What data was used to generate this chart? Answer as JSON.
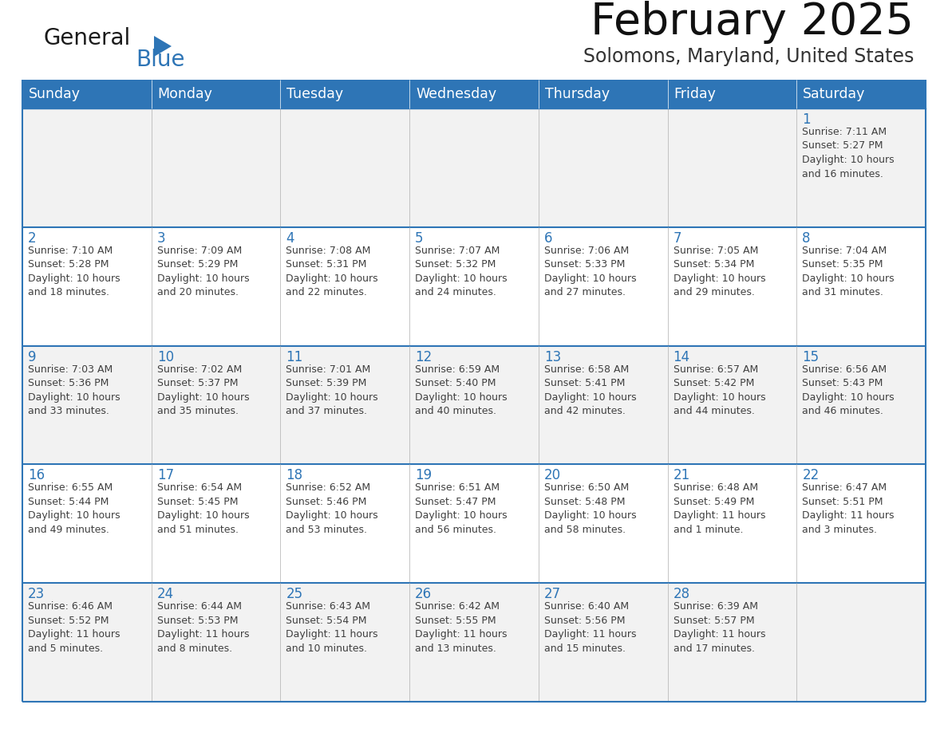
{
  "title": "February 2025",
  "subtitle": "Solomons, Maryland, United States",
  "header_bg": "#2E75B6",
  "header_text_color": "#FFFFFF",
  "cell_bg_even": "#F2F2F2",
  "cell_bg_odd": "#FFFFFF",
  "day_number_color": "#2E75B6",
  "cell_text_color": "#404040",
  "grid_color": "#BBBBBB",
  "border_color": "#2E75B6",
  "days_of_week": [
    "Sunday",
    "Monday",
    "Tuesday",
    "Wednesday",
    "Thursday",
    "Friday",
    "Saturday"
  ],
  "logo_general_color": "#1A1A1A",
  "logo_blue_color": "#2E75B6",
  "calendar_data": [
    [
      null,
      null,
      null,
      null,
      null,
      null,
      {
        "day": 1,
        "sunrise": "7:11 AM",
        "sunset": "5:27 PM",
        "daylight": "10 hours\nand 16 minutes."
      }
    ],
    [
      {
        "day": 2,
        "sunrise": "7:10 AM",
        "sunset": "5:28 PM",
        "daylight": "10 hours\nand 18 minutes."
      },
      {
        "day": 3,
        "sunrise": "7:09 AM",
        "sunset": "5:29 PM",
        "daylight": "10 hours\nand 20 minutes."
      },
      {
        "day": 4,
        "sunrise": "7:08 AM",
        "sunset": "5:31 PM",
        "daylight": "10 hours\nand 22 minutes."
      },
      {
        "day": 5,
        "sunrise": "7:07 AM",
        "sunset": "5:32 PM",
        "daylight": "10 hours\nand 24 minutes."
      },
      {
        "day": 6,
        "sunrise": "7:06 AM",
        "sunset": "5:33 PM",
        "daylight": "10 hours\nand 27 minutes."
      },
      {
        "day": 7,
        "sunrise": "7:05 AM",
        "sunset": "5:34 PM",
        "daylight": "10 hours\nand 29 minutes."
      },
      {
        "day": 8,
        "sunrise": "7:04 AM",
        "sunset": "5:35 PM",
        "daylight": "10 hours\nand 31 minutes."
      }
    ],
    [
      {
        "day": 9,
        "sunrise": "7:03 AM",
        "sunset": "5:36 PM",
        "daylight": "10 hours\nand 33 minutes."
      },
      {
        "day": 10,
        "sunrise": "7:02 AM",
        "sunset": "5:37 PM",
        "daylight": "10 hours\nand 35 minutes."
      },
      {
        "day": 11,
        "sunrise": "7:01 AM",
        "sunset": "5:39 PM",
        "daylight": "10 hours\nand 37 minutes."
      },
      {
        "day": 12,
        "sunrise": "6:59 AM",
        "sunset": "5:40 PM",
        "daylight": "10 hours\nand 40 minutes."
      },
      {
        "day": 13,
        "sunrise": "6:58 AM",
        "sunset": "5:41 PM",
        "daylight": "10 hours\nand 42 minutes."
      },
      {
        "day": 14,
        "sunrise": "6:57 AM",
        "sunset": "5:42 PM",
        "daylight": "10 hours\nand 44 minutes."
      },
      {
        "day": 15,
        "sunrise": "6:56 AM",
        "sunset": "5:43 PM",
        "daylight": "10 hours\nand 46 minutes."
      }
    ],
    [
      {
        "day": 16,
        "sunrise": "6:55 AM",
        "sunset": "5:44 PM",
        "daylight": "10 hours\nand 49 minutes."
      },
      {
        "day": 17,
        "sunrise": "6:54 AM",
        "sunset": "5:45 PM",
        "daylight": "10 hours\nand 51 minutes."
      },
      {
        "day": 18,
        "sunrise": "6:52 AM",
        "sunset": "5:46 PM",
        "daylight": "10 hours\nand 53 minutes."
      },
      {
        "day": 19,
        "sunrise": "6:51 AM",
        "sunset": "5:47 PM",
        "daylight": "10 hours\nand 56 minutes."
      },
      {
        "day": 20,
        "sunrise": "6:50 AM",
        "sunset": "5:48 PM",
        "daylight": "10 hours\nand 58 minutes."
      },
      {
        "day": 21,
        "sunrise": "6:48 AM",
        "sunset": "5:49 PM",
        "daylight": "11 hours\nand 1 minute."
      },
      {
        "day": 22,
        "sunrise": "6:47 AM",
        "sunset": "5:51 PM",
        "daylight": "11 hours\nand 3 minutes."
      }
    ],
    [
      {
        "day": 23,
        "sunrise": "6:46 AM",
        "sunset": "5:52 PM",
        "daylight": "11 hours\nand 5 minutes."
      },
      {
        "day": 24,
        "sunrise": "6:44 AM",
        "sunset": "5:53 PM",
        "daylight": "11 hours\nand 8 minutes."
      },
      {
        "day": 25,
        "sunrise": "6:43 AM",
        "sunset": "5:54 PM",
        "daylight": "11 hours\nand 10 minutes."
      },
      {
        "day": 26,
        "sunrise": "6:42 AM",
        "sunset": "5:55 PM",
        "daylight": "11 hours\nand 13 minutes."
      },
      {
        "day": 27,
        "sunrise": "6:40 AM",
        "sunset": "5:56 PM",
        "daylight": "11 hours\nand 15 minutes."
      },
      {
        "day": 28,
        "sunrise": "6:39 AM",
        "sunset": "5:57 PM",
        "daylight": "11 hours\nand 17 minutes."
      },
      null
    ]
  ]
}
